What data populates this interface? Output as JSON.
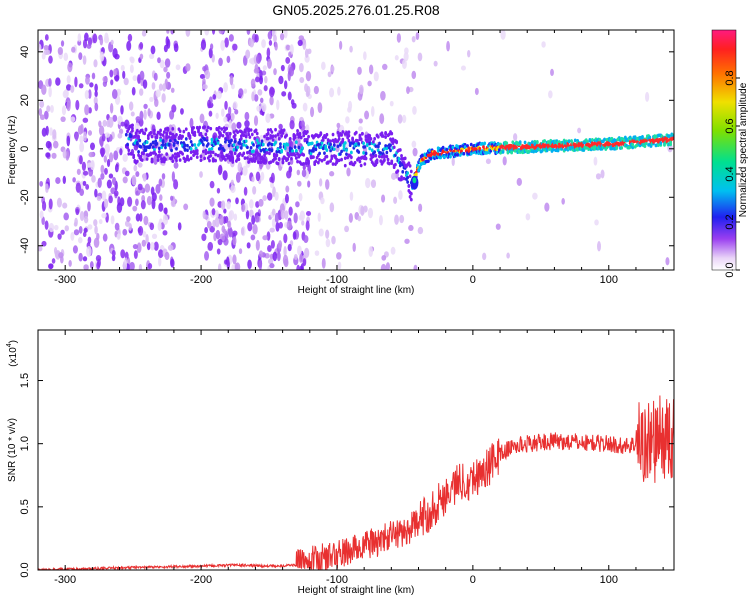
{
  "figure_title": "GN05.2025.276.01.25.R08",
  "chart_data": [
    {
      "type": "heatmap",
      "title": "GN05.2025.276.01.25.R08",
      "xlabel": "Height of straight line (km)",
      "ylabel": "Frequency (Hz)",
      "xlim": [
        -320,
        148
      ],
      "ylim": [
        -50,
        49
      ],
      "x_ticks": [
        -300,
        -200,
        -100,
        0,
        100
      ],
      "x_tick_labels": [
        "-300",
        "-200",
        "-100",
        "0",
        "100"
      ],
      "y_ticks": [
        -40,
        -20,
        0,
        20,
        40
      ],
      "y_tick_labels": [
        "-40",
        "-20",
        "0",
        "20",
        "40"
      ],
      "colorbar": {
        "label": "Normalized spectral amplitude",
        "range": [
          0,
          1
        ],
        "ticks": [
          0.0,
          0.2,
          0.4,
          0.6,
          0.8
        ],
        "tick_labels": [
          "0.0",
          "0.2",
          "0.4",
          "0.6",
          "0.8"
        ]
      },
      "signal_track": [
        {
          "x": -250,
          "y": 1
        },
        {
          "x": -200,
          "y": 2
        },
        {
          "x": -150,
          "y": 1
        },
        {
          "x": -100,
          "y": 0
        },
        {
          "x": -60,
          "y": 0
        },
        {
          "x": -45,
          "y": -15
        },
        {
          "x": -38,
          "y": -5
        },
        {
          "x": -30,
          "y": -2
        },
        {
          "x": 0,
          "y": 0
        },
        {
          "x": 50,
          "y": 1
        },
        {
          "x": 100,
          "y": 2
        },
        {
          "x": 148,
          "y": 4
        }
      ],
      "grid": false
    },
    {
      "type": "line",
      "xlabel": "Height of straight line (km)",
      "ylabel": "SNR (10 * v/v)",
      "y_multiplier_label": "(x10",
      "y_multiplier_exp": "4",
      "y_multiplier_close": ")",
      "xlim": [
        -320,
        148
      ],
      "ylim": [
        0,
        1.9
      ],
      "x_ticks": [
        -300,
        -200,
        -100,
        0,
        100
      ],
      "x_tick_labels": [
        "-300",
        "-200",
        "-100",
        "0",
        "100"
      ],
      "y_ticks": [
        0.0,
        0.5,
        1.0,
        1.5
      ],
      "y_tick_labels": [
        "0.0",
        "0.5",
        "1.0",
        "1.5"
      ],
      "series": [
        {
          "name": "SNR",
          "color": "#e83030",
          "x": [
            -320,
            -280,
            -250,
            -200,
            -175,
            -150,
            -130,
            -115,
            -100,
            -90,
            -80,
            -70,
            -60,
            -50,
            -40,
            -30,
            -20,
            -10,
            0,
            10,
            20,
            30,
            40,
            60,
            80,
            100,
            110,
            120,
            130,
            140,
            148
          ],
          "y": [
            0.0,
            0.01,
            0.02,
            0.03,
            0.04,
            0.03,
            0.04,
            0.08,
            0.12,
            0.15,
            0.2,
            0.22,
            0.28,
            0.3,
            0.38,
            0.48,
            0.6,
            0.7,
            0.72,
            0.8,
            0.92,
            0.98,
            1.0,
            1.02,
            1.01,
            1.0,
            0.98,
            1.0,
            1.02,
            1.05,
            1.0
          ]
        }
      ],
      "grid": false
    }
  ]
}
